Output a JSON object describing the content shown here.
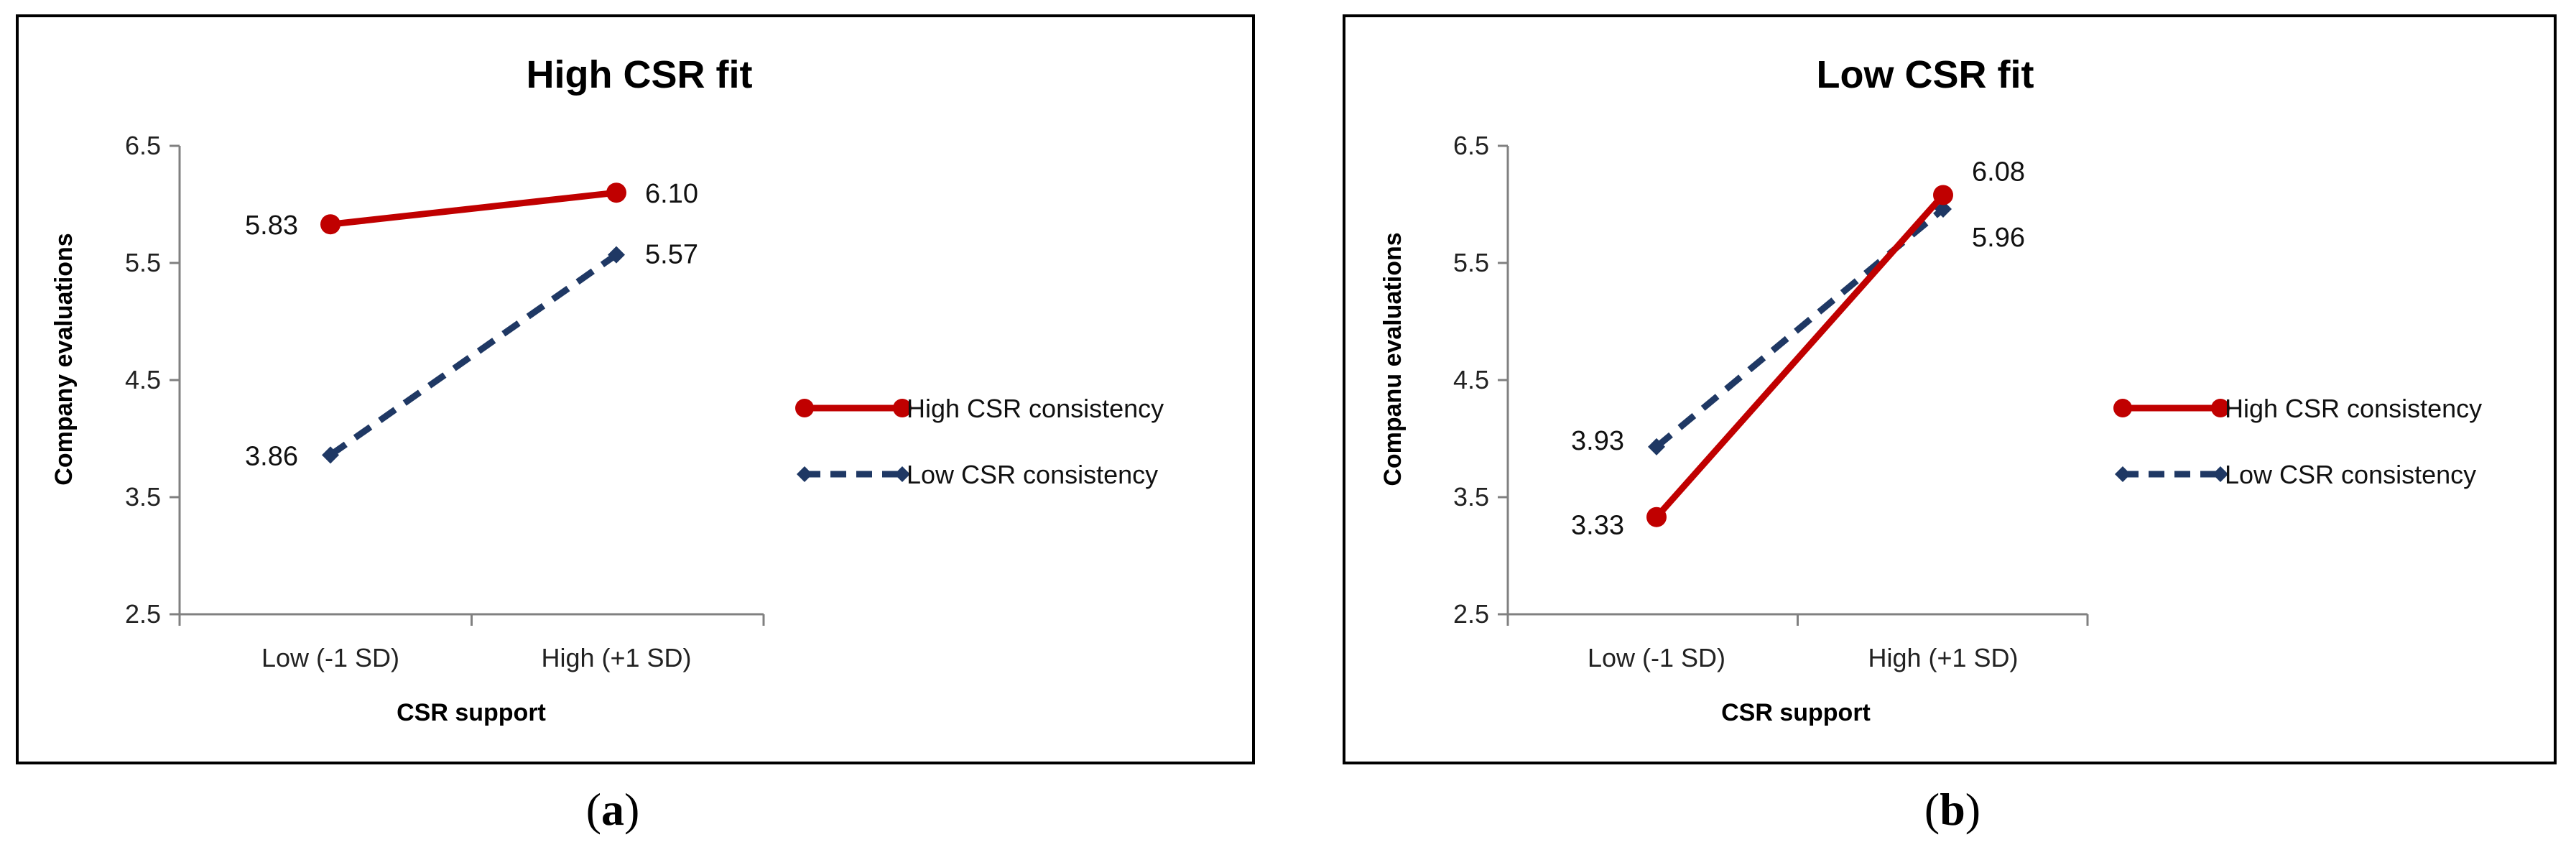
{
  "colors": {
    "high_consistency": "#C00000",
    "low_consistency": "#1F3864"
  },
  "chart_data": [
    {
      "type": "line",
      "title": "High CSR fit",
      "caption": "a",
      "xlabel": "CSR support",
      "ylabel": "Company evaluations",
      "categories": [
        "Low (-1 SD)",
        "High (+1 SD)"
      ],
      "ylim": [
        2.5,
        6.5
      ],
      "yticks": [
        "2.5",
        "3.5",
        "4.5",
        "5.5",
        "6.5"
      ],
      "legend_position": "right",
      "series": [
        {
          "name": "High CSR consistency",
          "values": [
            5.83,
            6.1
          ],
          "labels": [
            "5.83",
            "6.10"
          ],
          "style": "solid",
          "marker": "circle",
          "color": "#C00000"
        },
        {
          "name": "Low CSR consistency",
          "values": [
            3.86,
            5.57
          ],
          "labels": [
            "3.86",
            "5.57"
          ],
          "style": "dashed",
          "marker": "diamond",
          "color": "#1F3864"
        }
      ]
    },
    {
      "type": "line",
      "title": "Low CSR fit",
      "caption": "b",
      "xlabel": "CSR support",
      "ylabel": "Companu evaluations",
      "categories": [
        "Low (-1 SD)",
        "High (+1 SD)"
      ],
      "ylim": [
        2.5,
        6.5
      ],
      "yticks": [
        "2.5",
        "3.5",
        "4.5",
        "5.5",
        "6.5"
      ],
      "legend_position": "right",
      "series": [
        {
          "name": "High CSR consistency",
          "values": [
            3.33,
            6.08
          ],
          "labels": [
            "3.33",
            "6.08"
          ],
          "style": "solid",
          "marker": "circle",
          "color": "#C00000"
        },
        {
          "name": "Low CSR consistency",
          "values": [
            3.93,
            5.96
          ],
          "labels": [
            "3.93",
            "5.96"
          ],
          "style": "dashed",
          "marker": "diamond",
          "color": "#1F3864"
        }
      ]
    }
  ]
}
